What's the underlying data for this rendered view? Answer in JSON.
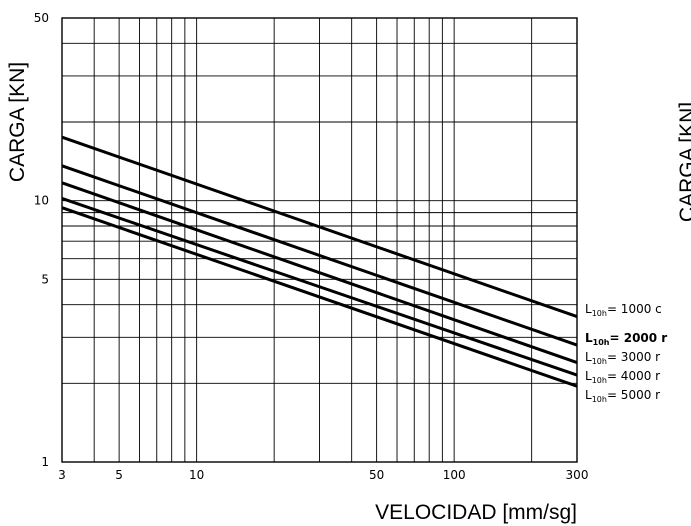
{
  "chart_data": [
    {
      "type": "line",
      "title": "",
      "xlabel": "VELOCIDAD [mm/sg]",
      "ylabel": "CARGA [KN]",
      "x_scale": "log",
      "y_scale": "log",
      "xlim": [
        3,
        300
      ],
      "ylim": [
        1,
        50
      ],
      "grid": true,
      "legend_position": "right",
      "x_ticks": [
        "3",
        "5",
        "10",
        "50",
        "100",
        "300"
      ],
      "y_ticks": [
        "1",
        "5",
        "10",
        "50"
      ],
      "series": [
        {
          "label": "1000",
          "x": [
            3,
            300
          ],
          "y": [
            17.5,
            3.6
          ]
        },
        {
          "label": "2000",
          "x": [
            3,
            300
          ],
          "y": [
            13.6,
            2.8
          ]
        },
        {
          "label": "3000",
          "x": [
            3,
            300
          ],
          "y": [
            11.7,
            2.4
          ]
        },
        {
          "label": "4000",
          "x": [
            3,
            300
          ],
          "y": [
            10.2,
            2.15
          ]
        },
        {
          "label": "5000",
          "x": [
            3,
            300
          ],
          "y": [
            9.4,
            1.95
          ]
        }
      ],
      "legend_entries": [
        {
          "prefix": "L",
          "subscript": "10h",
          "eq": "= ",
          "value": "1000",
          "cut": "c"
        },
        {
          "prefix": "L",
          "subscript": "10h",
          "eq": "= ",
          "value": "2000",
          "cut": "r"
        },
        {
          "prefix": "L",
          "subscript": "10h",
          "eq": "= ",
          "value": "3000",
          "cut": "r"
        },
        {
          "prefix": "L",
          "subscript": "10h",
          "eq": "= ",
          "value": "4000",
          "cut": "r"
        },
        {
          "prefix": "L",
          "subscript": "10h",
          "eq": "= ",
          "value": "5000",
          "cut": "r"
        }
      ]
    },
    {
      "type": "line",
      "partial": true,
      "ylabel": "CARGA [KN]"
    }
  ]
}
